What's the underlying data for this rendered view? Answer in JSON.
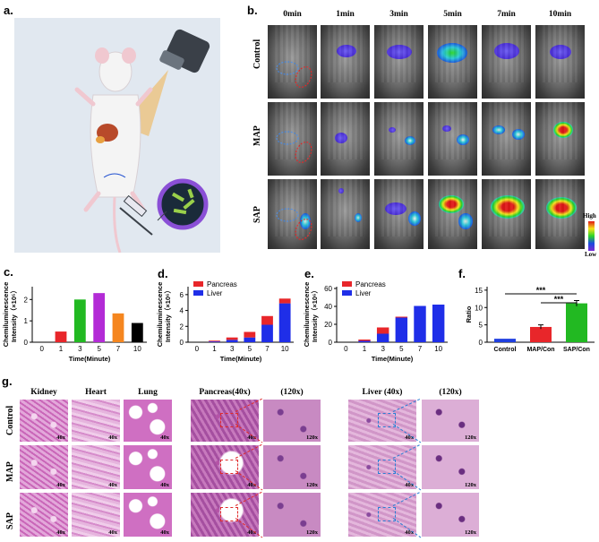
{
  "panel_labels": {
    "a": "a.",
    "b": "b.",
    "c": "c.",
    "d": "d.",
    "e": "e.",
    "f": "f.",
    "g": "g."
  },
  "imaging": {
    "time_headers": [
      "0min",
      "1min",
      "3min",
      "5min",
      "7min",
      "10min"
    ],
    "rows": [
      "Control",
      "MAP",
      "SAP"
    ],
    "colorbar": {
      "high": "High",
      "low": "Low"
    }
  },
  "histology": {
    "headers": [
      "Kidney",
      "Heart",
      "Lung",
      "Pancreas(40x)",
      "(120x)",
      "Liver (40x)",
      "(120x)"
    ],
    "rows": [
      "Control",
      "MAP",
      "SAP"
    ],
    "mag_40": "40x",
    "mag_120": "120x"
  },
  "colors": {
    "pancreas": "#e8262a",
    "liver": "#1f2ee8",
    "control": "#1f3fe0",
    "map": "#e8262a",
    "sap": "#22b922",
    "histo_pink": "#d77ec9",
    "dash_red": "#e02a2a",
    "dash_blue": "#2a7fd4"
  },
  "chart_data": [
    {
      "id": "c",
      "type": "bar",
      "categories": [
        "0",
        "1",
        "3",
        "5",
        "7",
        "10"
      ],
      "values": [
        0,
        0.5,
        2.0,
        2.3,
        1.35,
        0.9
      ],
      "colors": [
        "#000000",
        "#e8262a",
        "#22b922",
        "#b32bd6",
        "#f5861f",
        "#000000"
      ],
      "xlabel": "Time(Minute)",
      "ylabel": "Chemiluminescence",
      "ylabel2": "Intensity（×10⁵）",
      "ylim": [
        0,
        2.6
      ],
      "yticks": [
        0,
        1,
        2
      ]
    },
    {
      "id": "d",
      "type": "bar",
      "stacked": true,
      "categories": [
        "0",
        "1",
        "3",
        "5",
        "7",
        "10"
      ],
      "series": [
        {
          "name": "Liver",
          "values": [
            0,
            0.1,
            0.3,
            0.6,
            2.2,
            4.9
          ]
        },
        {
          "name": "Pancreas",
          "values": [
            0,
            0.1,
            0.3,
            0.7,
            1.1,
            0.6
          ]
        }
      ],
      "xlabel": "Time(Minute)",
      "ylabel": "Chemiluminescence",
      "ylabel2": "Intensity（×10⁶）",
      "ylim": [
        0,
        7
      ],
      "yticks": [
        0,
        2,
        4,
        6
      ]
    },
    {
      "id": "e",
      "type": "bar",
      "stacked": true,
      "categories": [
        "0",
        "1",
        "3",
        "5",
        "7",
        "10"
      ],
      "series": [
        {
          "name": "Liver",
          "values": [
            0,
            1.5,
            9.5,
            27.5,
            40.5,
            42
          ]
        },
        {
          "name": "Pancreas",
          "values": [
            0,
            1.5,
            7,
            1,
            0,
            0
          ]
        }
      ],
      "xlabel": "Time(Minute)",
      "ylabel": "Chemiluminescence",
      "ylabel2": "Intensity（×10⁶）",
      "ylim": [
        0,
        62
      ],
      "yticks": [
        0,
        20,
        40,
        60
      ]
    },
    {
      "id": "f",
      "type": "bar",
      "categories": [
        "Control",
        "MAP/Con",
        "SAP/Con"
      ],
      "values": [
        1,
        4.4,
        11.2
      ],
      "errors": [
        0,
        0.6,
        0.8
      ],
      "colors": [
        "#1f3fe0",
        "#e8262a",
        "#22b922"
      ],
      "ylabel": "Ratio",
      "ylim": [
        0,
        16
      ],
      "yticks": [
        0,
        5,
        10,
        15
      ],
      "significance": [
        "***",
        "***"
      ]
    }
  ]
}
